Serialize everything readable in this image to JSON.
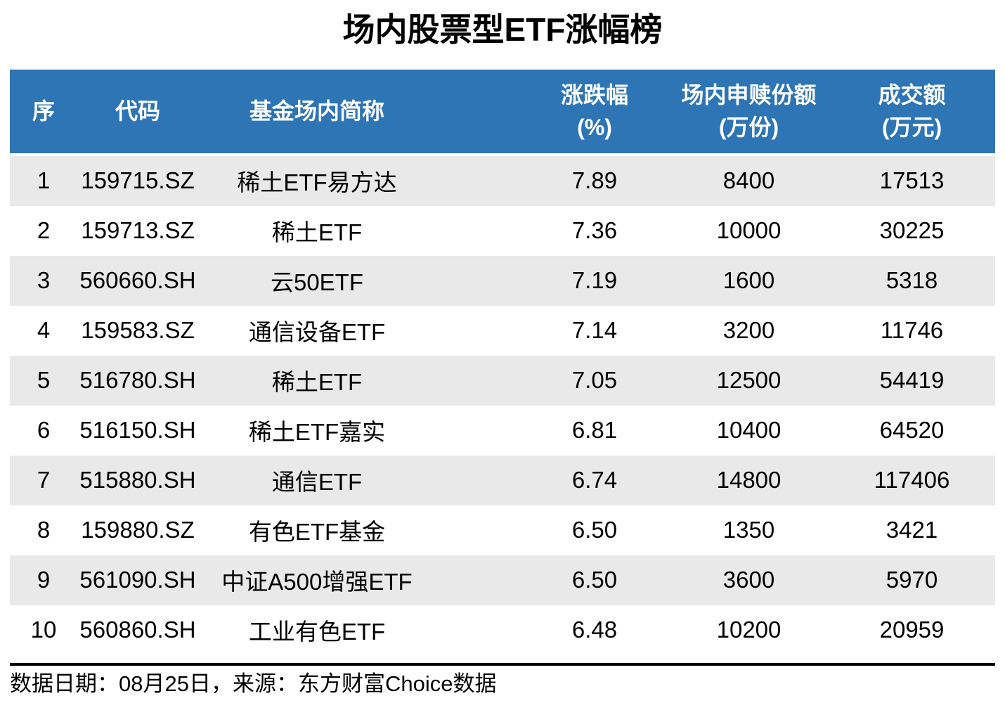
{
  "title": "场内股票型ETF涨幅榜",
  "table": {
    "headers": [
      {
        "line1": "序",
        "line2": ""
      },
      {
        "line1": "代码",
        "line2": ""
      },
      {
        "line1": "基金场内简称",
        "line2": ""
      },
      {
        "line1": "涨跌幅",
        "line2": "(%)"
      },
      {
        "line1": "场内申赎份额",
        "line2": "(万份)"
      },
      {
        "line1": "成交额",
        "line2": "(万元)"
      }
    ],
    "rows": [
      [
        "1",
        "159715.SZ",
        "稀土ETF易方达",
        "7.89",
        "8400",
        "17513"
      ],
      [
        "2",
        "159713.SZ",
        "稀土ETF",
        "7.36",
        "10000",
        "30225"
      ],
      [
        "3",
        "560660.SH",
        "云50ETF",
        "7.19",
        "1600",
        "5318"
      ],
      [
        "4",
        "159583.SZ",
        "通信设备ETF",
        "7.14",
        "3200",
        "11746"
      ],
      [
        "5",
        "516780.SH",
        "稀土ETF",
        "7.05",
        "12500",
        "54419"
      ],
      [
        "6",
        "516150.SH",
        "稀土ETF嘉实",
        "6.81",
        "10400",
        "64520"
      ],
      [
        "7",
        "515880.SH",
        "通信ETF",
        "6.74",
        "14800",
        "117406"
      ],
      [
        "8",
        "159880.SZ",
        "有色ETF基金",
        "6.50",
        "1350",
        "3421"
      ],
      [
        "9",
        "561090.SH",
        "中证A500增强ETF",
        "6.50",
        "3600",
        "5970"
      ],
      [
        "10",
        "560860.SH",
        "工业有色ETF",
        "6.48",
        "10200",
        "20959"
      ]
    ]
  },
  "footer": {
    "text": "数据日期：08月25日，来源：东方财富Choice数据"
  },
  "colors": {
    "header_bg": "#2e75b6",
    "header_text": "#ffffff",
    "stripe_bg": "#e9e9e9",
    "row_bg": "#ffffff",
    "divider": "#000000",
    "text": "#000000"
  },
  "chart_data": {
    "type": "table",
    "title": "场内股票型ETF涨幅榜",
    "columns": [
      "序",
      "代码",
      "基金场内简称",
      "涨跌幅(%)",
      "场内申赎份额(万份)",
      "成交额(万元)"
    ],
    "rows": [
      [
        1,
        "159715.SZ",
        "稀土ETF易方达",
        7.89,
        8400,
        17513
      ],
      [
        2,
        "159713.SZ",
        "稀土ETF",
        7.36,
        10000,
        30225
      ],
      [
        3,
        "560660.SH",
        "云50ETF",
        7.19,
        1600,
        5318
      ],
      [
        4,
        "159583.SZ",
        "通信设备ETF",
        7.14,
        3200,
        11746
      ],
      [
        5,
        "516780.SH",
        "稀土ETF",
        7.05,
        12500,
        54419
      ],
      [
        6,
        "516150.SH",
        "稀土ETF嘉实",
        6.81,
        10400,
        64520
      ],
      [
        7,
        "515880.SH",
        "通信ETF",
        6.74,
        14800,
        117406
      ],
      [
        8,
        "159880.SZ",
        "有色ETF基金",
        6.5,
        1350,
        3421
      ],
      [
        9,
        "561090.SH",
        "中证A500增强ETF",
        6.5,
        3600,
        5970
      ],
      [
        10,
        "560860.SH",
        "工业有色ETF",
        6.48,
        10200,
        20959
      ]
    ],
    "layout": {
      "header_style": "blue-banded",
      "row_stripes": true,
      "legend": "none",
      "grid": "off"
    },
    "source_note": "数据日期：08月25日，来源：东方财富Choice数据"
  }
}
